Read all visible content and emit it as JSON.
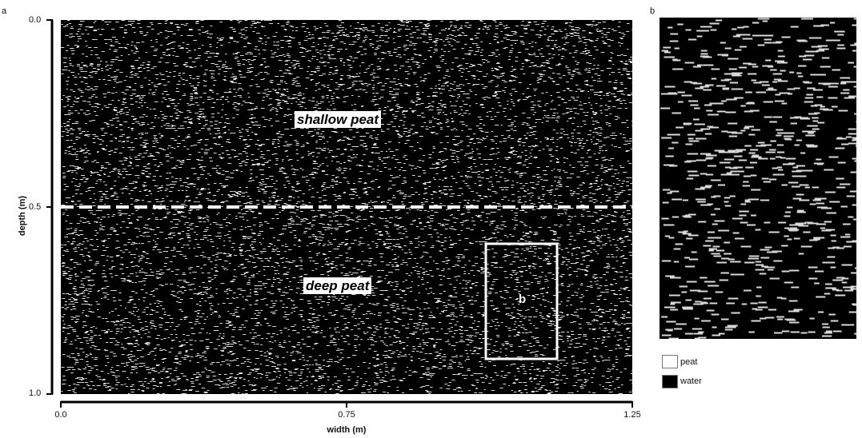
{
  "panel_a": {
    "letter": "a",
    "y_axis": {
      "title": "depth (m)",
      "ticks": [
        "0.0",
        "0.5",
        "1.0"
      ]
    },
    "x_axis": {
      "title": "width (m)",
      "ticks": [
        "0.0",
        "0.75",
        "1.25"
      ]
    },
    "labels": {
      "shallow": "shallow peat",
      "deep": "deep peat",
      "inset": "b"
    },
    "boundary_depth_m": 0.5
  },
  "panel_b": {
    "letter": "b"
  },
  "legend": {
    "items": [
      {
        "label": "peat",
        "color": "#ffffff"
      },
      {
        "label": "water",
        "color": "#000000"
      }
    ]
  },
  "colors": {
    "background": "#000000",
    "texture": "#ffffff"
  }
}
